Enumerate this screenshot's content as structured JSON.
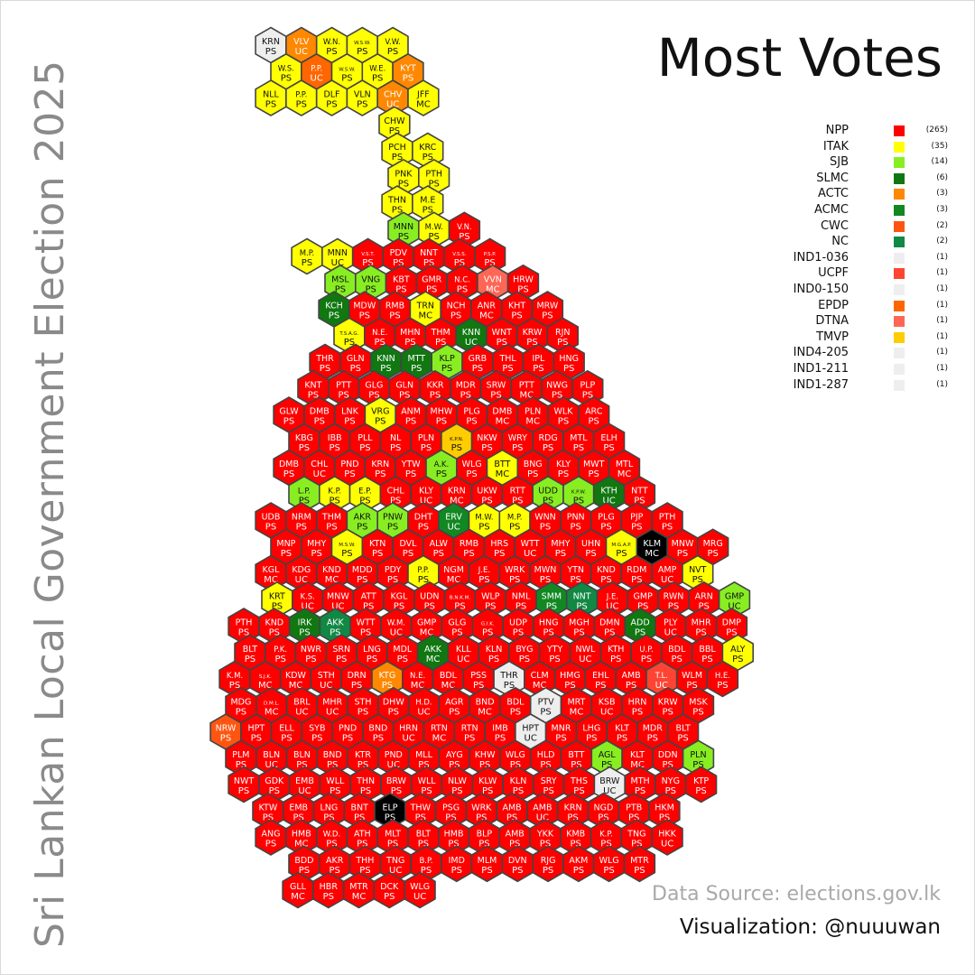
{
  "title": "Most Votes",
  "side_title": "Sri Lankan Local Government Election 2025",
  "source": "Data Source: elections.gov.lk",
  "credit": "Visualization: @nuuuwan",
  "legend": [
    {
      "party": "NPP",
      "count": "(265)",
      "color": "#ff0000"
    },
    {
      "party": "ITAK",
      "count": "(35)",
      "color": "#ffff00"
    },
    {
      "party": "SJB",
      "count": "(14)",
      "color": "#88ee22"
    },
    {
      "party": "SLMC",
      "count": "(6)",
      "color": "#117711"
    },
    {
      "party": "ACTC",
      "count": "(3)",
      "color": "#ff8800"
    },
    {
      "party": "ACMC",
      "count": "(3)",
      "color": "#118822"
    },
    {
      "party": "CWC",
      "count": "(2)",
      "color": "#ff5511"
    },
    {
      "party": "NC",
      "count": "(2)",
      "color": "#118844"
    },
    {
      "party": "IND1-036",
      "count": "(1)",
      "color": "#eeeeee"
    },
    {
      "party": "UCPF",
      "count": "(1)",
      "color": "#ff4433"
    },
    {
      "party": "IND0-150",
      "count": "(1)",
      "color": "#eeeeee"
    },
    {
      "party": "EPDP",
      "count": "(1)",
      "color": "#ff6600"
    },
    {
      "party": "DTNA",
      "count": "(1)",
      "color": "#ff6655"
    },
    {
      "party": "TMVP",
      "count": "(1)",
      "color": "#ffcc00"
    },
    {
      "party": "IND4-205",
      "count": "(1)",
      "color": "#eeeeee"
    },
    {
      "party": "IND1-211",
      "count": "(1)",
      "color": "#eeeeee"
    },
    {
      "party": "IND1-287",
      "count": "(1)",
      "color": "#eeeeee"
    }
  ],
  "party_colors": {
    "NPP": "#ff0000",
    "ITAK": "#ffff00",
    "SJB": "#88ee22",
    "SLMC": "#117711",
    "ACTC": "#ff8800",
    "ACMC": "#118822",
    "CWC": "#ff5511",
    "NC": "#118844",
    "IND": "#eeeeee",
    "UCPF": "#ff4433",
    "EPDP": "#ff6600",
    "DTNA": "#ff6655",
    "TMVP": "#ffcc00",
    "OTHER": "#000000"
  },
  "hexes": [
    [
      "KRN",
      "PS",
      "IND"
    ],
    [
      "VLV",
      "UC",
      "ACTC"
    ],
    [
      "W.N.",
      "PS",
      "ITAK"
    ],
    [
      "W.S.W.",
      "PS",
      "ITAK"
    ],
    [
      "V.W.",
      "PS",
      "ITAK"
    ],
    [
      "W.S.",
      "PS",
      "ITAK"
    ],
    [
      "P.P.",
      "UC",
      "EPDP"
    ],
    [
      "W.S.W.",
      "PS",
      "ITAK"
    ],
    [
      "W.E.",
      "PS",
      "ITAK"
    ],
    [
      "KYT",
      "PS",
      "ACTC"
    ],
    [
      "NLL",
      "PS",
      "ITAK"
    ],
    [
      "P.P.",
      "PS",
      "ITAK"
    ],
    [
      "DLF",
      "PS",
      "ITAK"
    ],
    [
      "VLN",
      "PS",
      "ITAK"
    ],
    [
      "CHV",
      "UC",
      "ACTC"
    ],
    [
      "JFF",
      "MC",
      "ITAK"
    ],
    [
      "CHW",
      "PS",
      "ITAK"
    ],
    [
      "PCH",
      "PS",
      "ITAK"
    ],
    [
      "KRC",
      "PS",
      "ITAK"
    ],
    [
      "PNK",
      "PS",
      "ITAK"
    ],
    [
      "PTH",
      "PS",
      "ITAK"
    ],
    [
      "THN",
      "PS",
      "ITAK"
    ],
    [
      "M.E",
      "PS",
      "ITAK"
    ],
    [
      "MNN",
      "PS",
      "SJB"
    ],
    [
      "M.W.",
      "PS",
      "ITAK"
    ],
    [
      "V.N.",
      "PS",
      "NPP"
    ],
    [
      "M.P.",
      "PS",
      "ITAK"
    ],
    [
      "MNN",
      "UC",
      "ITAK"
    ],
    [
      "V.S.T.",
      "PS",
      "NPP"
    ],
    [
      "PDV",
      "PS",
      "NPP"
    ],
    [
      "NNT",
      "PS",
      "NPP"
    ],
    [
      "V.S.S.",
      "PS",
      "NPP"
    ],
    [
      "P.S.P.",
      "PS",
      "NPP"
    ],
    [
      "MSL",
      "PS",
      "SJB"
    ],
    [
      "VNG",
      "PS",
      "SJB"
    ],
    [
      "KBT",
      "PS",
      "NPP"
    ],
    [
      "GMR",
      "PS",
      "NPP"
    ],
    [
      "N.C.",
      "PS",
      "NPP"
    ],
    [
      "VVN",
      "MC",
      "DTNA"
    ],
    [
      "HRW",
      "PS",
      "NPP"
    ],
    [
      "KCH",
      "PS",
      "SLMC"
    ],
    [
      "MDW",
      "PS",
      "NPP"
    ],
    [
      "RMB",
      "PS",
      "NPP"
    ],
    [
      "TRN",
      "MC",
      "ITAK"
    ],
    [
      "NCH",
      "PS",
      "NPP"
    ],
    [
      "ANR",
      "MC",
      "NPP"
    ],
    [
      "KHT",
      "PS",
      "NPP"
    ],
    [
      "MRW",
      "PS",
      "NPP"
    ],
    [
      "T.S.A.G.",
      "PS",
      "ITAK"
    ],
    [
      "N.E.",
      "PS",
      "NPP"
    ],
    [
      "MHN",
      "PS",
      "NPP"
    ],
    [
      "THM",
      "PS",
      "NPP"
    ],
    [
      "KNN",
      "UC",
      "SLMC"
    ],
    [
      "WNT",
      "PS",
      "NPP"
    ],
    [
      "KRW",
      "PS",
      "NPP"
    ],
    [
      "RJN",
      "PS",
      "NPP"
    ],
    [
      "THR",
      "PS",
      "NPP"
    ],
    [
      "GLN",
      "PS",
      "NPP"
    ],
    [
      "KNN",
      "PS",
      "SLMC"
    ],
    [
      "MTT",
      "PS",
      "SLMC"
    ],
    [
      "KLP",
      "PS",
      "SJB"
    ],
    [
      "GRB",
      "PS",
      "NPP"
    ],
    [
      "THL",
      "PS",
      "NPP"
    ],
    [
      "IPL",
      "PS",
      "NPP"
    ],
    [
      "HNG",
      "PS",
      "NPP"
    ],
    [
      "KNT",
      "PS",
      "NPP"
    ],
    [
      "PTT",
      "PS",
      "NPP"
    ],
    [
      "GLG",
      "PS",
      "NPP"
    ],
    [
      "GLN",
      "PS",
      "NPP"
    ],
    [
      "KKR",
      "PS",
      "NPP"
    ],
    [
      "MDR",
      "PS",
      "NPP"
    ],
    [
      "SRW",
      "PS",
      "NPP"
    ],
    [
      "PTT",
      "MC",
      "NPP"
    ],
    [
      "NWG",
      "PS",
      "NPP"
    ],
    [
      "PLP",
      "PS",
      "NPP"
    ],
    [
      "GLW",
      "PS",
      "NPP"
    ],
    [
      "DMB",
      "PS",
      "NPP"
    ],
    [
      "LNK",
      "PS",
      "NPP"
    ],
    [
      "VRG",
      "PS",
      "ITAK"
    ],
    [
      "ANM",
      "PS",
      "NPP"
    ],
    [
      "MHW",
      "PS",
      "NPP"
    ],
    [
      "PLG",
      "PS",
      "NPP"
    ],
    [
      "DMB",
      "MC",
      "NPP"
    ],
    [
      "PLN",
      "MC",
      "NPP"
    ],
    [
      "WLK",
      "PS",
      "NPP"
    ],
    [
      "ARC",
      "PS",
      "NPP"
    ],
    [
      "KBG",
      "PS",
      "NPP"
    ],
    [
      "IBB",
      "PS",
      "NPP"
    ],
    [
      "PLL",
      "PS",
      "NPP"
    ],
    [
      "NL",
      "PS",
      "NPP"
    ],
    [
      "PLN",
      "PS",
      "NPP"
    ],
    [
      "K.P.N.",
      "PS",
      "TMVP"
    ],
    [
      "NKW",
      "PS",
      "NPP"
    ],
    [
      "WRY",
      "PS",
      "NPP"
    ],
    [
      "RDG",
      "PS",
      "NPP"
    ],
    [
      "MTL",
      "PS",
      "NPP"
    ],
    [
      "ELH",
      "PS",
      "NPP"
    ],
    [
      "DMB",
      "PS",
      "NPP"
    ],
    [
      "CHL",
      "UC",
      "NPP"
    ],
    [
      "PND",
      "PS",
      "NPP"
    ],
    [
      "KRN",
      "PS",
      "NPP"
    ],
    [
      "YTW",
      "PS",
      "NPP"
    ],
    [
      "A.K.",
      "PS",
      "SJB"
    ],
    [
      "WLG",
      "PS",
      "NPP"
    ],
    [
      "BTT",
      "MC",
      "ITAK"
    ],
    [
      "BNG",
      "PS",
      "NPP"
    ],
    [
      "KLY",
      "PS",
      "NPP"
    ],
    [
      "MWT",
      "PS",
      "NPP"
    ],
    [
      "MTL",
      "MC",
      "NPP"
    ],
    [
      "L.P.",
      "PS",
      "SJB"
    ],
    [
      "K.P.",
      "PS",
      "ITAK"
    ],
    [
      "E.P.",
      "PS",
      "ITAK"
    ],
    [
      "CHL",
      "PS",
      "NPP"
    ],
    [
      "KLY",
      "UC",
      "NPP"
    ],
    [
      "KRN",
      "MC",
      "NPP"
    ],
    [
      "UKW",
      "PS",
      "NPP"
    ],
    [
      "RTT",
      "PS",
      "NPP"
    ],
    [
      "UDD",
      "PS",
      "SJB"
    ],
    [
      "K.P.W.",
      "PS",
      "SJB"
    ],
    [
      "KTH",
      "UC",
      "SLMC"
    ],
    [
      "NTT",
      "PS",
      "NPP"
    ],
    [
      "UDB",
      "PS",
      "NPP"
    ],
    [
      "NRM",
      "PS",
      "NPP"
    ],
    [
      "THM",
      "PS",
      "NPP"
    ],
    [
      "AKR",
      "PS",
      "SJB"
    ],
    [
      "PNW",
      "PS",
      "SJB"
    ],
    [
      "DHT",
      "PS",
      "NPP"
    ],
    [
      "ERV",
      "UC",
      "ACMC"
    ],
    [
      "M.W.",
      "PS",
      "ITAK"
    ],
    [
      "M.P.",
      "PS",
      "ITAK"
    ],
    [
      "WNN",
      "PS",
      "NPP"
    ],
    [
      "PNN",
      "PS",
      "NPP"
    ],
    [
      "PLG",
      "PS",
      "NPP"
    ],
    [
      "PJP",
      "PS",
      "NPP"
    ],
    [
      "PTH",
      "PS",
      "NPP"
    ],
    [
      "MNP",
      "PS",
      "NPP"
    ],
    [
      "MHY",
      "PS",
      "NPP"
    ],
    [
      "M.S.W.",
      "PS",
      "ITAK"
    ],
    [
      "KTN",
      "PS",
      "NPP"
    ],
    [
      "DVL",
      "PS",
      "NPP"
    ],
    [
      "ALW",
      "PS",
      "NPP"
    ],
    [
      "RMB",
      "PS",
      "NPP"
    ],
    [
      "HRS",
      "PS",
      "NPP"
    ],
    [
      "WTT",
      "UC",
      "NPP"
    ],
    [
      "MHY",
      "PS",
      "NPP"
    ],
    [
      "UHN",
      "PS",
      "NPP"
    ],
    [
      "M.G.A.P.",
      "PS",
      "ITAK"
    ],
    [
      "KLM",
      "MC",
      "OTHER"
    ],
    [
      "MNW",
      "PS",
      "NPP"
    ],
    [
      "MRG",
      "PS",
      "NPP"
    ],
    [
      "KGL",
      "MC",
      "NPP"
    ],
    [
      "KDG",
      "UC",
      "NPP"
    ],
    [
      "KND",
      "MC",
      "NPP"
    ],
    [
      "MDD",
      "PS",
      "NPP"
    ],
    [
      "PDY",
      "PS",
      "NPP"
    ],
    [
      "P.P.",
      "PS",
      "ITAK"
    ],
    [
      "NGM",
      "MC",
      "NPP"
    ],
    [
      "J.E.",
      "PS",
      "NPP"
    ],
    [
      "WRK",
      "PS",
      "NPP"
    ],
    [
      "MWN",
      "PS",
      "NPP"
    ],
    [
      "YTN",
      "PS",
      "NPP"
    ],
    [
      "KND",
      "PS",
      "NPP"
    ],
    [
      "RDM",
      "PS",
      "NPP"
    ],
    [
      "AMP",
      "UC",
      "NPP"
    ],
    [
      "NVT",
      "PS",
      "ITAK"
    ],
    [
      "KRT",
      "PS",
      "ITAK"
    ],
    [
      "K.S.",
      "UC",
      "NPP"
    ],
    [
      "MNW",
      "UC",
      "NPP"
    ],
    [
      "ATT",
      "PS",
      "NPP"
    ],
    [
      "KGL",
      "PS",
      "NPP"
    ],
    [
      "UDN",
      "PS",
      "NPP"
    ],
    [
      "B.N.K.M.",
      "PS",
      "NPP"
    ],
    [
      "WLP",
      "PS",
      "NPP"
    ],
    [
      "NML",
      "PS",
      "NPP"
    ],
    [
      "SMM",
      "PS",
      "ACMC"
    ],
    [
      "NNT",
      "PS",
      "NC"
    ],
    [
      "J.E.",
      "UC",
      "NPP"
    ],
    [
      "GMP",
      "PS",
      "NPP"
    ],
    [
      "RWN",
      "PS",
      "NPP"
    ],
    [
      "ARN",
      "PS",
      "NPP"
    ],
    [
      "GMP",
      "UC",
      "SJB"
    ],
    [
      "PTH",
      "PS",
      "NPP"
    ],
    [
      "KND",
      "PS",
      "NPP"
    ],
    [
      "IRK",
      "PS",
      "SLMC"
    ],
    [
      "AKK",
      "PS",
      "NC"
    ],
    [
      "WTT",
      "PS",
      "NPP"
    ],
    [
      "W.M.",
      "UC",
      "NPP"
    ],
    [
      "GMP",
      "MC",
      "NPP"
    ],
    [
      "GLG",
      "PS",
      "NPP"
    ],
    [
      "G.I.K.",
      "PS",
      "NPP"
    ],
    [
      "UDP",
      "PS",
      "NPP"
    ],
    [
      "HNG",
      "PS",
      "NPP"
    ],
    [
      "MGH",
      "PS",
      "NPP"
    ],
    [
      "DMN",
      "PS",
      "NPP"
    ],
    [
      "ADD",
      "PS",
      "SLMC"
    ],
    [
      "PLY",
      "UC",
      "NPP"
    ],
    [
      "MHR",
      "PS",
      "NPP"
    ],
    [
      "DMP",
      "PS",
      "NPP"
    ],
    [
      "BLT",
      "PS",
      "NPP"
    ],
    [
      "P.K.",
      "PS",
      "NPP"
    ],
    [
      "NWR",
      "PS",
      "NPP"
    ],
    [
      "SRN",
      "PS",
      "NPP"
    ],
    [
      "LNG",
      "PS",
      "NPP"
    ],
    [
      "MDL",
      "PS",
      "NPP"
    ],
    [
      "AKK",
      "MC",
      "SLMC"
    ],
    [
      "KLL",
      "UC",
      "NPP"
    ],
    [
      "KLN",
      "PS",
      "NPP"
    ],
    [
      "BYG",
      "PS",
      "NPP"
    ],
    [
      "YTY",
      "PS",
      "NPP"
    ],
    [
      "NWL",
      "UC",
      "NPP"
    ],
    [
      "KTH",
      "PS",
      "NPP"
    ],
    [
      "U.P.",
      "PS",
      "NPP"
    ],
    [
      "BDL",
      "PS",
      "NPP"
    ],
    [
      "BBL",
      "PS",
      "NPP"
    ],
    [
      "ALY",
      "PS",
      "ITAK"
    ],
    [
      "K.M.",
      "PS",
      "NPP"
    ],
    [
      "S.J.K.",
      "MC",
      "NPP"
    ],
    [
      "KDW",
      "MC",
      "NPP"
    ],
    [
      "STH",
      "UC",
      "NPP"
    ],
    [
      "DRN",
      "PS",
      "NPP"
    ],
    [
      "KTG",
      "PS",
      "ACTC"
    ],
    [
      "N.E.",
      "MC",
      "NPP"
    ],
    [
      "BDL",
      "MC",
      "NPP"
    ],
    [
      "PSS",
      "PS",
      "NPP"
    ],
    [
      "THR",
      "PS",
      "IND"
    ],
    [
      "CLM",
      "MC",
      "NPP"
    ],
    [
      "HMG",
      "PS",
      "NPP"
    ],
    [
      "EHL",
      "PS",
      "NPP"
    ],
    [
      "AMB",
      "PS",
      "NPP"
    ],
    [
      "T.L.",
      "UC",
      "UCPF"
    ],
    [
      "WLM",
      "PS",
      "NPP"
    ],
    [
      "H.E.",
      "PS",
      "NPP"
    ],
    [
      "MDG",
      "PS",
      "NPP"
    ],
    [
      "D.M.L.",
      "MC",
      "NPP"
    ],
    [
      "BRL",
      "UC",
      "NPP"
    ],
    [
      "MHR",
      "UC",
      "NPP"
    ],
    [
      "STH",
      "PS",
      "NPP"
    ],
    [
      "DHW",
      "PS",
      "NPP"
    ],
    [
      "H.D.",
      "UC",
      "NPP"
    ],
    [
      "AGR",
      "PS",
      "NPP"
    ],
    [
      "BND",
      "MC",
      "NPP"
    ],
    [
      "BDL",
      "PS",
      "NPP"
    ],
    [
      "PTV",
      "PS",
      "IND"
    ],
    [
      "MRT",
      "MC",
      "NPP"
    ],
    [
      "KSB",
      "UC",
      "NPP"
    ],
    [
      "HRN",
      "PS",
      "NPP"
    ],
    [
      "KRW",
      "PS",
      "NPP"
    ],
    [
      "MSK",
      "PS",
      "NPP"
    ],
    [
      "NRW",
      "PS",
      "CWC"
    ],
    [
      "HPT",
      "PS",
      "NPP"
    ],
    [
      "ELL",
      "PS",
      "NPP"
    ],
    [
      "SYB",
      "PS",
      "NPP"
    ],
    [
      "PND",
      "PS",
      "NPP"
    ],
    [
      "BND",
      "PS",
      "NPP"
    ],
    [
      "HRN",
      "UC",
      "NPP"
    ],
    [
      "RTN",
      "MC",
      "NPP"
    ],
    [
      "RTN",
      "PS",
      "NPP"
    ],
    [
      "IMB",
      "PS",
      "NPP"
    ],
    [
      "HPT",
      "UC",
      "IND"
    ],
    [
      "MNR",
      "PS",
      "NPP"
    ],
    [
      "LHG",
      "PS",
      "NPP"
    ],
    [
      "KLT",
      "PS",
      "NPP"
    ],
    [
      "MDR",
      "PS",
      "NPP"
    ],
    [
      "BLT",
      "PS",
      "NPP"
    ],
    [
      "PLM",
      "PS",
      "NPP"
    ],
    [
      "BLN",
      "UC",
      "NPP"
    ],
    [
      "BLN",
      "PS",
      "NPP"
    ],
    [
      "BND",
      "PS",
      "NPP"
    ],
    [
      "KTR",
      "PS",
      "NPP"
    ],
    [
      "PND",
      "UC",
      "NPP"
    ],
    [
      "MLL",
      "PS",
      "NPP"
    ],
    [
      "AYG",
      "PS",
      "NPP"
    ],
    [
      "KHW",
      "PS",
      "NPP"
    ],
    [
      "WLG",
      "PS",
      "NPP"
    ],
    [
      "HLD",
      "PS",
      "NPP"
    ],
    [
      "BTT",
      "PS",
      "NPP"
    ],
    [
      "AGL",
      "PS",
      "SJB"
    ],
    [
      "KLT",
      "MC",
      "NPP"
    ],
    [
      "DDN",
      "PS",
      "NPP"
    ],
    [
      "PLN",
      "PS",
      "SJB"
    ],
    [
      "NWT",
      "PS",
      "NPP"
    ],
    [
      "GDK",
      "PS",
      "NPP"
    ],
    [
      "EMB",
      "UC",
      "NPP"
    ],
    [
      "WLL",
      "PS",
      "NPP"
    ],
    [
      "THN",
      "PS",
      "NPP"
    ],
    [
      "BRW",
      "PS",
      "NPP"
    ],
    [
      "WLL",
      "PS",
      "NPP"
    ],
    [
      "NLW",
      "PS",
      "NPP"
    ],
    [
      "KLW",
      "PS",
      "NPP"
    ],
    [
      "KLN",
      "PS",
      "NPP"
    ],
    [
      "SRY",
      "PS",
      "NPP"
    ],
    [
      "THS",
      "PS",
      "NPP"
    ],
    [
      "BRW",
      "UC",
      "IND"
    ],
    [
      "MTH",
      "PS",
      "NPP"
    ],
    [
      "NYG",
      "PS",
      "NPP"
    ],
    [
      "KTP",
      "PS",
      "NPP"
    ],
    [
      "KTW",
      "PS",
      "NPP"
    ],
    [
      "EMB",
      "PS",
      "NPP"
    ],
    [
      "LNG",
      "PS",
      "NPP"
    ],
    [
      "BNT",
      "PS",
      "NPP"
    ],
    [
      "ELP",
      "PS",
      "OTHER"
    ],
    [
      "THW",
      "PS",
      "NPP"
    ],
    [
      "PSG",
      "PS",
      "NPP"
    ],
    [
      "WRK",
      "PS",
      "NPP"
    ],
    [
      "AMB",
      "PS",
      "NPP"
    ],
    [
      "AMB",
      "UC",
      "NPP"
    ],
    [
      "KRN",
      "PS",
      "NPP"
    ],
    [
      "NGD",
      "PS",
      "NPP"
    ],
    [
      "PTB",
      "PS",
      "NPP"
    ],
    [
      "HKM",
      "PS",
      "NPP"
    ],
    [
      "ANG",
      "PS",
      "NPP"
    ],
    [
      "HMB",
      "MC",
      "NPP"
    ],
    [
      "W.D.",
      "PS",
      "NPP"
    ],
    [
      "ATH",
      "PS",
      "NPP"
    ],
    [
      "MLT",
      "PS",
      "NPP"
    ],
    [
      "BLT",
      "PS",
      "NPP"
    ],
    [
      "HMB",
      "PS",
      "NPP"
    ],
    [
      "BLP",
      "PS",
      "NPP"
    ],
    [
      "AMB",
      "PS",
      "NPP"
    ],
    [
      "YKK",
      "PS",
      "NPP"
    ],
    [
      "KMB",
      "PS",
      "NPP"
    ],
    [
      "K.P.",
      "PS",
      "NPP"
    ],
    [
      "TNG",
      "PS",
      "NPP"
    ],
    [
      "HKK",
      "UC",
      "NPP"
    ],
    [
      "BDD",
      "PS",
      "NPP"
    ],
    [
      "AKR",
      "PS",
      "NPP"
    ],
    [
      "THH",
      "PS",
      "NPP"
    ],
    [
      "TNG",
      "UC",
      "NPP"
    ],
    [
      "B.P.",
      "PS",
      "NPP"
    ],
    [
      "IMD",
      "PS",
      "NPP"
    ],
    [
      "MLM",
      "PS",
      "NPP"
    ],
    [
      "DVN",
      "PS",
      "NPP"
    ],
    [
      "RJG",
      "PS",
      "NPP"
    ],
    [
      "AKM",
      "PS",
      "NPP"
    ],
    [
      "WLG",
      "PS",
      "NPP"
    ],
    [
      "MTR",
      "PS",
      "NPP"
    ],
    [
      "GLL",
      "MC",
      "NPP"
    ],
    [
      "HBR",
      "PS",
      "NPP"
    ],
    [
      "MTR",
      "MC",
      "NPP"
    ],
    [
      "DCK",
      "PS",
      "NPP"
    ],
    [
      "WLG",
      "UC",
      "NPP"
    ]
  ]
}
